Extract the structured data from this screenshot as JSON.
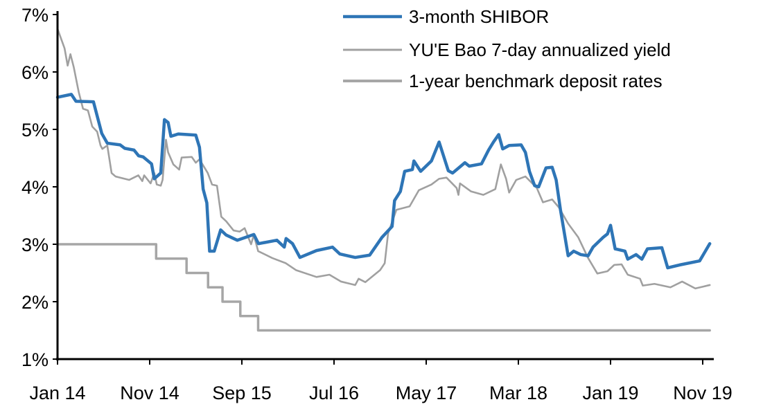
{
  "chart_data": {
    "type": "line",
    "title": "",
    "xlabel": "",
    "ylabel": "",
    "ylim": [
      1,
      7
    ],
    "y_ticks": [
      "1%",
      "2%",
      "3%",
      "4%",
      "5%",
      "6%",
      "7%"
    ],
    "x_ticks": [
      {
        "date": "2014-01-01",
        "label": "Jan 14"
      },
      {
        "date": "2014-11-01",
        "label": "Nov 14"
      },
      {
        "date": "2015-09-01",
        "label": "Sep 15"
      },
      {
        "date": "2016-07-01",
        "label": "Jul 16"
      },
      {
        "date": "2017-05-01",
        "label": "May 17"
      },
      {
        "date": "2018-03-01",
        "label": "Mar 18"
      },
      {
        "date": "2019-01-01",
        "label": "Jan 19"
      },
      {
        "date": "2019-11-01",
        "label": "Nov 19"
      }
    ],
    "grid": false,
    "legend_position": "top-right",
    "series": [
      {
        "name": "3-month SHIBOR",
        "color": "#2E75B6",
        "points": [
          [
            "2014-01-01",
            5.56
          ],
          [
            "2014-02-16",
            5.61
          ],
          [
            "2014-03-01",
            5.49
          ],
          [
            "2014-04-28",
            5.48
          ],
          [
            "2014-05-25",
            4.93
          ],
          [
            "2014-06-13",
            4.76
          ],
          [
            "2014-07-25",
            4.73
          ],
          [
            "2014-08-10",
            4.67
          ],
          [
            "2014-09-10",
            4.64
          ],
          [
            "2014-09-25",
            4.54
          ],
          [
            "2014-10-10",
            4.52
          ],
          [
            "2014-11-07",
            4.4
          ],
          [
            "2014-11-16",
            4.14
          ],
          [
            "2014-12-07",
            4.24
          ],
          [
            "2014-12-19",
            5.17
          ],
          [
            "2015-01-01",
            5.12
          ],
          [
            "2015-01-10",
            4.88
          ],
          [
            "2015-02-04",
            4.92
          ],
          [
            "2015-04-01",
            4.9
          ],
          [
            "2015-04-13",
            4.69
          ],
          [
            "2015-04-25",
            3.96
          ],
          [
            "2015-05-07",
            3.72
          ],
          [
            "2015-05-16",
            2.88
          ],
          [
            "2015-06-01",
            2.88
          ],
          [
            "2015-06-22",
            3.25
          ],
          [
            "2015-07-10",
            3.16
          ],
          [
            "2015-08-16",
            3.07
          ],
          [
            "2015-10-10",
            3.17
          ],
          [
            "2015-10-25",
            3.01
          ],
          [
            "2015-12-25",
            3.07
          ],
          [
            "2016-01-19",
            2.95
          ],
          [
            "2016-01-25",
            3.1
          ],
          [
            "2016-02-16",
            3.01
          ],
          [
            "2016-03-10",
            2.77
          ],
          [
            "2016-05-04",
            2.89
          ],
          [
            "2016-06-26",
            2.95
          ],
          [
            "2016-07-20",
            2.83
          ],
          [
            "2016-09-10",
            2.77
          ],
          [
            "2016-10-27",
            2.81
          ],
          [
            "2016-12-07",
            3.12
          ],
          [
            "2017-01-10",
            3.31
          ],
          [
            "2017-01-18",
            3.76
          ],
          [
            "2017-02-07",
            3.92
          ],
          [
            "2017-02-21",
            4.27
          ],
          [
            "2017-03-16",
            4.3
          ],
          [
            "2017-03-21",
            4.45
          ],
          [
            "2017-04-13",
            4.27
          ],
          [
            "2017-05-18",
            4.45
          ],
          [
            "2017-06-13",
            4.78
          ],
          [
            "2017-07-13",
            4.28
          ],
          [
            "2017-07-27",
            4.24
          ],
          [
            "2017-09-07",
            4.42
          ],
          [
            "2017-09-21",
            4.36
          ],
          [
            "2017-11-01",
            4.4
          ],
          [
            "2017-11-24",
            4.64
          ],
          [
            "2017-12-10",
            4.78
          ],
          [
            "2017-12-27",
            4.91
          ],
          [
            "2018-01-10",
            4.66
          ],
          [
            "2018-02-01",
            4.72
          ],
          [
            "2018-03-10",
            4.73
          ],
          [
            "2018-03-24",
            4.6
          ],
          [
            "2018-04-07",
            4.27
          ],
          [
            "2018-04-24",
            4.02
          ],
          [
            "2018-05-07",
            4.0
          ],
          [
            "2018-06-01",
            4.33
          ],
          [
            "2018-06-21",
            4.34
          ],
          [
            "2018-07-04",
            4.12
          ],
          [
            "2018-07-18",
            3.6
          ],
          [
            "2018-08-13",
            2.8
          ],
          [
            "2018-09-01",
            2.88
          ],
          [
            "2018-09-24",
            2.82
          ],
          [
            "2018-10-18",
            2.8
          ],
          [
            "2018-11-04",
            2.95
          ],
          [
            "2018-12-07",
            3.12
          ],
          [
            "2018-12-21",
            3.18
          ],
          [
            "2019-01-01",
            3.33
          ],
          [
            "2019-01-16",
            2.92
          ],
          [
            "2019-02-18",
            2.88
          ],
          [
            "2019-02-27",
            2.74
          ],
          [
            "2019-03-24",
            2.82
          ],
          [
            "2019-04-13",
            2.74
          ],
          [
            "2019-05-01",
            2.92
          ],
          [
            "2019-06-18",
            2.94
          ],
          [
            "2019-07-07",
            2.59
          ],
          [
            "2019-08-16",
            2.64
          ],
          [
            "2019-10-21",
            2.71
          ],
          [
            "2019-11-24",
            3.01
          ]
        ]
      },
      {
        "name": "YU'E Bao 7-day annualized yield",
        "color": "#A0A0A0",
        "points": [
          [
            "2014-01-01",
            6.75
          ],
          [
            "2014-01-24",
            6.41
          ],
          [
            "2014-02-04",
            6.11
          ],
          [
            "2014-02-13",
            6.31
          ],
          [
            "2014-02-24",
            6.08
          ],
          [
            "2014-03-10",
            5.65
          ],
          [
            "2014-03-24",
            5.36
          ],
          [
            "2014-04-10",
            5.33
          ],
          [
            "2014-04-24",
            5.05
          ],
          [
            "2014-05-10",
            4.96
          ],
          [
            "2014-05-21",
            4.72
          ],
          [
            "2014-05-27",
            4.66
          ],
          [
            "2014-06-13",
            4.72
          ],
          [
            "2014-06-27",
            4.24
          ],
          [
            "2014-07-10",
            4.18
          ],
          [
            "2014-08-24",
            4.12
          ],
          [
            "2014-09-24",
            4.2
          ],
          [
            "2014-10-07",
            4.1
          ],
          [
            "2014-10-13",
            4.2
          ],
          [
            "2014-11-04",
            4.06
          ],
          [
            "2014-11-16",
            4.24
          ],
          [
            "2014-11-24",
            4.04
          ],
          [
            "2014-12-07",
            4.02
          ],
          [
            "2014-12-13",
            4.12
          ],
          [
            "2014-12-24",
            4.82
          ],
          [
            "2015-01-01",
            4.6
          ],
          [
            "2015-01-18",
            4.39
          ],
          [
            "2015-02-07",
            4.3
          ],
          [
            "2015-02-15",
            4.51
          ],
          [
            "2015-03-18",
            4.52
          ],
          [
            "2015-04-01",
            4.42
          ],
          [
            "2015-04-13",
            4.48
          ],
          [
            "2015-05-10",
            4.24
          ],
          [
            "2015-05-24",
            4.04
          ],
          [
            "2015-06-10",
            4.02
          ],
          [
            "2015-06-24",
            3.48
          ],
          [
            "2015-07-10",
            3.4
          ],
          [
            "2015-08-04",
            3.24
          ],
          [
            "2015-08-24",
            3.22
          ],
          [
            "2015-09-10",
            3.28
          ],
          [
            "2015-10-01",
            3.0
          ],
          [
            "2015-10-10",
            3.16
          ],
          [
            "2015-10-24",
            2.88
          ],
          [
            "2015-12-10",
            2.76
          ],
          [
            "2016-01-24",
            2.67
          ],
          [
            "2016-02-27",
            2.55
          ],
          [
            "2016-05-04",
            2.43
          ],
          [
            "2016-06-16",
            2.47
          ],
          [
            "2016-07-24",
            2.35
          ],
          [
            "2016-09-10",
            2.29
          ],
          [
            "2016-09-21",
            2.4
          ],
          [
            "2016-10-13",
            2.34
          ],
          [
            "2016-12-01",
            2.55
          ],
          [
            "2016-12-16",
            2.67
          ],
          [
            "2016-12-27",
            3.19
          ],
          [
            "2017-01-24",
            3.6
          ],
          [
            "2017-03-07",
            3.66
          ],
          [
            "2017-04-07",
            3.94
          ],
          [
            "2017-05-18",
            4.04
          ],
          [
            "2017-06-13",
            4.14
          ],
          [
            "2017-07-07",
            4.16
          ],
          [
            "2017-08-10",
            3.98
          ],
          [
            "2017-08-16",
            3.86
          ],
          [
            "2017-08-21",
            4.06
          ],
          [
            "2017-09-27",
            3.92
          ],
          [
            "2017-11-07",
            3.86
          ],
          [
            "2017-12-16",
            3.96
          ],
          [
            "2018-01-04",
            4.39
          ],
          [
            "2018-01-21",
            4.14
          ],
          [
            "2018-02-01",
            3.9
          ],
          [
            "2018-02-24",
            4.12
          ],
          [
            "2018-03-24",
            4.18
          ],
          [
            "2018-05-01",
            3.98
          ],
          [
            "2018-05-21",
            3.73
          ],
          [
            "2018-06-21",
            3.78
          ],
          [
            "2018-07-13",
            3.64
          ],
          [
            "2018-08-13",
            3.36
          ],
          [
            "2018-09-16",
            3.12
          ],
          [
            "2018-10-18",
            2.76
          ],
          [
            "2018-11-18",
            2.49
          ],
          [
            "2018-12-21",
            2.53
          ],
          [
            "2019-01-13",
            2.64
          ],
          [
            "2019-02-07",
            2.65
          ],
          [
            "2019-02-27",
            2.47
          ],
          [
            "2019-04-07",
            2.4
          ],
          [
            "2019-04-16",
            2.28
          ],
          [
            "2019-05-24",
            2.31
          ],
          [
            "2019-07-16",
            2.25
          ],
          [
            "2019-08-24",
            2.35
          ],
          [
            "2019-10-07",
            2.23
          ],
          [
            "2019-11-24",
            2.29
          ]
        ]
      },
      {
        "name": "1-year benchmark deposit rates",
        "color": "#A6A6A6",
        "step": true,
        "points": [
          [
            "2014-01-01",
            3.0
          ],
          [
            "2014-11-22",
            2.75
          ],
          [
            "2015-03-01",
            2.5
          ],
          [
            "2015-05-11",
            2.25
          ],
          [
            "2015-06-28",
            2.0
          ],
          [
            "2015-08-26",
            1.75
          ],
          [
            "2015-10-24",
            1.5
          ],
          [
            "2019-11-24",
            1.5
          ]
        ]
      }
    ]
  }
}
